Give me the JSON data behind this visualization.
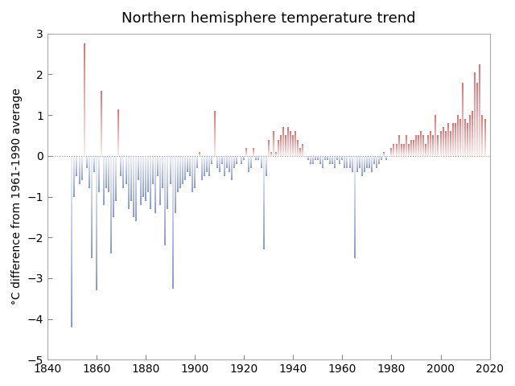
{
  "title": "Northern hemisphere temperature trend",
  "ylabel": "°C difference from 1961-1990 average",
  "xlim": [
    1840,
    2020
  ],
  "ylim": [
    -5,
    3
  ],
  "yticks": [
    -5,
    -4,
    -3,
    -2,
    -1,
    0,
    1,
    2,
    3
  ],
  "xticks": [
    1840,
    1860,
    1880,
    1900,
    1920,
    1940,
    1960,
    1980,
    2000,
    2020
  ],
  "hline_color": "#999999",
  "hline_style": "dotted",
  "figsize": [
    6.4,
    4.8
  ],
  "dpi": 100,
  "title_fontsize": 13,
  "ylabel_fontsize": 10,
  "tick_fontsize": 10,
  "background_color": "#ffffff",
  "spine_color": "#aaaaaa",
  "red_rgb": [
    0.85,
    0.35,
    0.35
  ],
  "blue_rgb": [
    0.45,
    0.52,
    0.8
  ]
}
